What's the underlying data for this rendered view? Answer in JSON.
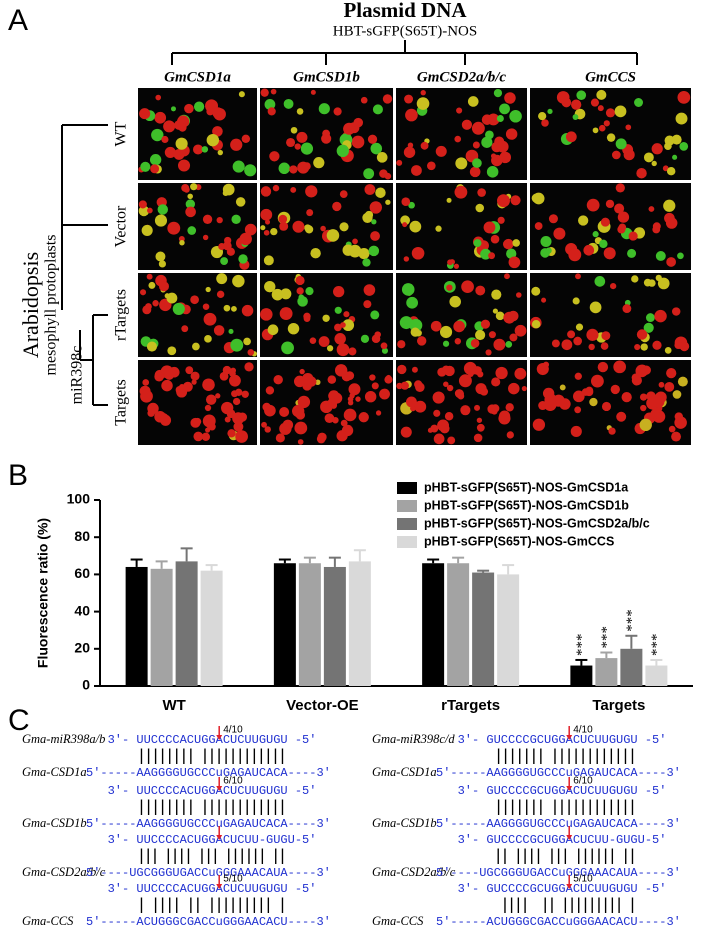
{
  "panel_a": {
    "letter": "A",
    "title": "Plasmid DNA",
    "subtitle": "HBT-sGFP(S65T)-NOS",
    "columns": [
      "GmCSD1a",
      "GmCSD1b",
      "GmCSD2a/b/c",
      "GmCCS"
    ],
    "rows": [
      "WT",
      "Vector",
      "rTargets",
      "Targets"
    ],
    "group_label": "Arabidopsis",
    "group_sublabel": "mesophyll protoplasts",
    "row_group_label": "miR398c"
  },
  "chart_data": {
    "type": "bar",
    "letter": "B",
    "y_label": "Fluorescence ratio (%)",
    "categories": [
      "WT",
      "Vector-OE",
      "rTargets",
      "Targets"
    ],
    "series": [
      {
        "name": "pHBT-sGFP(S65T)-NOS-GmCSD1a",
        "color": "#000000",
        "values": [
          64,
          66,
          66,
          11
        ],
        "errors": [
          4,
          2,
          2,
          3
        ],
        "annotations": [
          null,
          null,
          null,
          "***"
        ]
      },
      {
        "name": "pHBT-sGFP(S65T)-NOS-GmCSD1b",
        "color": "#a3a3a3",
        "values": [
          63,
          66,
          66,
          15
        ],
        "errors": [
          4,
          3,
          3,
          3
        ],
        "annotations": [
          null,
          null,
          null,
          "***"
        ]
      },
      {
        "name": "pHBT-sGFP(S65T)-NOS-GmCSD2a/b/c",
        "color": "#747474",
        "values": [
          67,
          64,
          61,
          20
        ],
        "errors": [
          7,
          5,
          1,
          7
        ],
        "annotations": [
          null,
          null,
          null,
          "***"
        ]
      },
      {
        "name": "pHBT-sGFP(S65T)-NOS-GmCCS",
        "color": "#d9d9d9",
        "values": [
          62,
          67,
          60,
          11
        ],
        "errors": [
          3,
          6,
          5,
          3
        ],
        "annotations": [
          null,
          null,
          null,
          "***"
        ]
      }
    ],
    "ylim": [
      0,
      100
    ],
    "yticks": [
      0,
      20,
      40,
      60,
      80,
      100
    ],
    "grid": false,
    "legend": "top-right"
  },
  "panel_c": {
    "letter": "C",
    "columns": [
      {
        "mirna_name": "Gma-miR398a/b",
        "blocks": [
          {
            "target_name": "Gma-CSD1a",
            "mirna": "3'- UUCCCCACUGGACUCUUGUGU -5'",
            "pairs": "|||||||| ||||||||||||",
            "target": "5'-----AAGGGGUGCCCuGAGAUCACA----3'",
            "cleavage": "4/10"
          },
          {
            "target_name": "Gma-CSD1b",
            "mirna": "3'- UUCCCCACUGGACUCUUGUGU -5'",
            "pairs": "|||||||| ||||||||||||",
            "target": "5'-----AAGGGGUGCCCuGAGAUCACA----3'",
            "cleavage": "6/10"
          },
          {
            "target_name": "Gma-CSD2a/b/c",
            "mirna": "3'- UUCCCCACUGGACUCUU-GUGU-5'",
            "pairs": "||| |||| ||| |||||| ||",
            "target": "5'----UGCGGGUGACCuGGGAAACAUA----3'"
          },
          {
            "target_name": "Gma-CCS",
            "mirna": "3'- UUCCCCACUGGACUCUUGUGU -5'",
            "pairs": "| |||| || ||||||||| |",
            "target": "5'-----ACUGGGCGACCuGGGAACACU----3'",
            "cleavage": "5/10"
          }
        ]
      },
      {
        "mirna_name": "Gma-miR398c/d",
        "blocks": [
          {
            "target_name": "Gma-CSD1a",
            "mirna": "3'- GUCCCCGCUGGACUCUUGUGU -5'",
            "pairs": " ||||||| ||||||||||||",
            "target": "5'-----AAGGGGUGCCCuGAGAUCACA----3'",
            "cleavage": "4/10"
          },
          {
            "target_name": "Gma-CSD1b",
            "mirna": "3'- GUCCCCGCUGGACUCUUGUGU -5'",
            "pairs": " ||||||| ||||||||||||",
            "target": "5'-----AAGGGGUGCCCuGAGAUCACA----3'",
            "cleavage": "6/10"
          },
          {
            "target_name": "Gma-CSD2a/b/c",
            "mirna": "3'- GUCCCCGCUGGACUCUU-GUGU-5'",
            "pairs": " || |||| ||| |||||| ||",
            "target": "5'----UGCGGGUGACCuGGGAAACAUA----3'"
          },
          {
            "target_name": "Gma-CCS",
            "mirna": "3'- GUCCCCGCUGGACUCUUGUGU -5'",
            "pairs": "  ||||  || ||||||||| |",
            "target": "5'-----ACUGGGCGACCuGGGAACACU----3'",
            "cleavage": "5/10"
          }
        ]
      }
    ]
  }
}
